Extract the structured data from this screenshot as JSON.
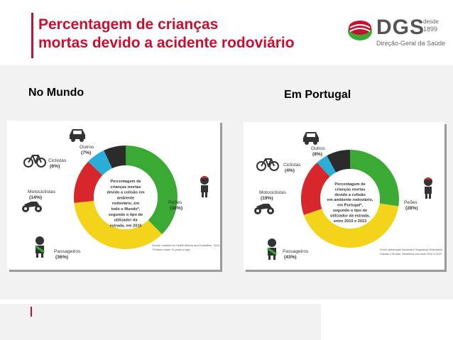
{
  "header": {
    "title_line1": "Percentagem de crianças",
    "title_line2": "mortas devido a acidente rodoviário",
    "logo": {
      "text": "DGS",
      "desde": "desde",
      "year": "1899",
      "subtitle": "Direção-Geral da Saúde",
      "icon": "dgs-emblem-icon"
    }
  },
  "colors": {
    "accent": "#c8102e",
    "pedestrians": "#3aaa35",
    "passengers": "#f4d41b",
    "motorcyclists": "#d7262c",
    "cyclists": "#2aaed8",
    "others": "#2b2b2b"
  },
  "panels": [
    {
      "label": "No Mundo",
      "center_text": [
        "Percentagem de",
        "crianças mortas",
        "devido a colisão em",
        "ambiente",
        "rodoviário, em",
        "todo o Mundo*,",
        "segundo o tipo de",
        "utilizador da",
        "estrada, em 2010"
      ],
      "source": [
        "Source: Institute for Health Metrics and Evaluation, 2013",
        "*Children under 14 years of age"
      ],
      "icons": [
        "car-icon",
        "bicycle-icon",
        "motorcycle-icon",
        "pedestrian-child-icon",
        "passenger-child-icon"
      ]
    },
    {
      "label": "Em Portugal",
      "center_text": [
        "Percentagem de",
        "crianças mortas",
        "devido a colisão",
        "em ambiente rodoviário,",
        "em Portugal*,",
        "segundo o tipo de",
        "utilizador da estrada,",
        "entre 2010 e 2013"
      ],
      "source": [
        "Fonte: Autoridade Nacional e Segurança Rodoviária,",
        "Vítimas a 30 dias. Relatórios dos anos 2010 a 2013"
      ],
      "icons": [
        "car-icon",
        "bicycle-icon",
        "motorcycle-icon",
        "pedestrian-child-icon",
        "passenger-child-icon"
      ]
    }
  ],
  "chart_data": [
    {
      "type": "pie",
      "categories": [
        "Peões",
        "Passageiros",
        "Motociclistas",
        "Ciclistas",
        "Outros"
      ],
      "values": [
        38,
        36,
        14,
        6,
        7
      ],
      "value_labels": [
        "(38%)",
        "(36%)",
        "(14%)",
        "(6%)",
        "(7%)"
      ]
    },
    {
      "type": "pie",
      "categories": [
        "Peões",
        "Passageiros",
        "Motociclistas",
        "Ciclistas",
        "Outros"
      ],
      "values": [
        28,
        43,
        19,
        4,
        8
      ],
      "value_labels": [
        "(28%)",
        "(43%)",
        "(19%)",
        "(4%)",
        "(8%)"
      ]
    }
  ]
}
